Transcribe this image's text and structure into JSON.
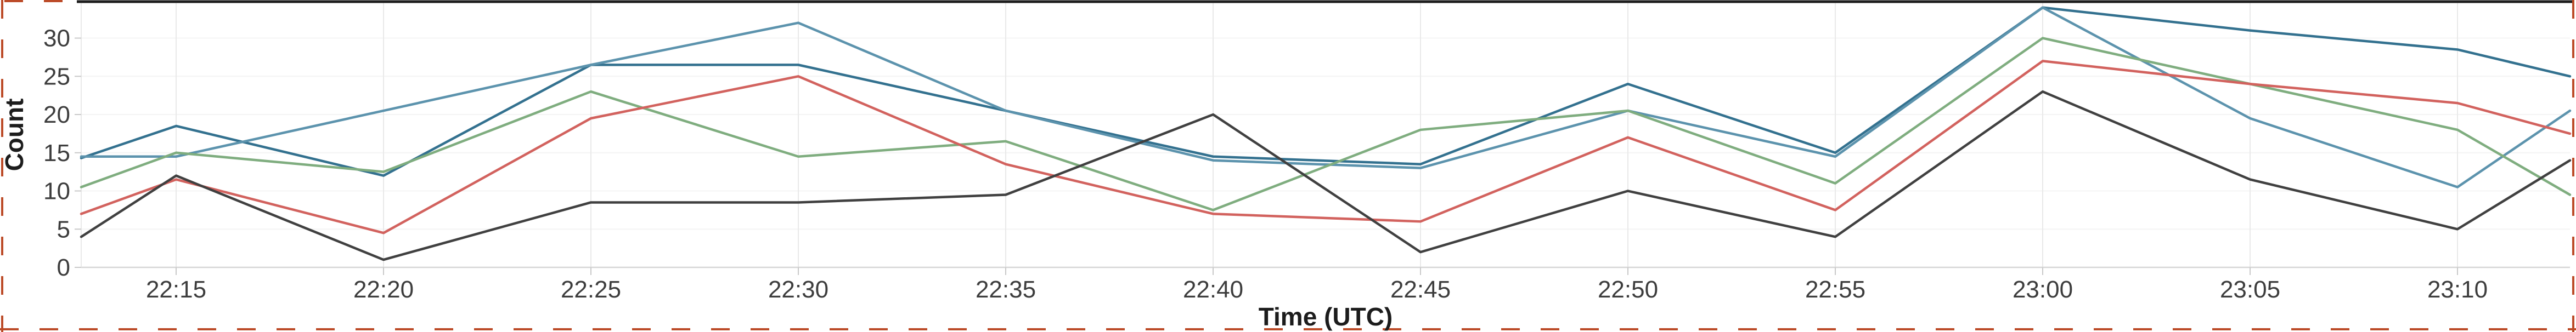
{
  "widget": {
    "description": "Line chart panel of counts over time (UTC), enclosed by an orange-red dashed selection border"
  },
  "axes": {
    "y_title": "Count",
    "x_title": "Time (UTC)"
  },
  "chart_data": {
    "type": "line",
    "title": "",
    "xlabel": "Time (UTC)",
    "ylabel": "Count",
    "x": [
      "22:15",
      "22:20",
      "22:25",
      "22:30",
      "22:35",
      "22:40",
      "22:45",
      "22:50",
      "22:55",
      "23:00",
      "23:05",
      "23:10"
    ],
    "y_ticks": [
      0,
      5,
      10,
      15,
      20,
      25,
      30
    ],
    "y_tick_labels": [
      "0",
      "5",
      "10",
      "15",
      "20",
      "25",
      "30"
    ],
    "ylim": [
      0,
      34.7
    ],
    "grid": "light vertical gridline at every 5-minute tick; very faint horizontal gridlines at each y tick",
    "legend_position": "none visible",
    "plot_note": "plot window extends about 2.5 minutes beyond the first and last labeled ticks; series lines are clipped at the plot edges (edge_start / edge_end are the clipped edge values)",
    "series": [
      {
        "name": "series-1-dark-steel-blue",
        "color": "#33718f",
        "edge_start": 14.3,
        "values": [
          18.5,
          12,
          26.5,
          26.5,
          20.5,
          14.5,
          13.5,
          24,
          15,
          34,
          31,
          28.5
        ],
        "edge_end": 25
      },
      {
        "name": "series-2-steel-blue",
        "color": "#5c93ad",
        "edge_start": 14.5,
        "values": [
          14.5,
          20.5,
          26.5,
          32,
          20.5,
          14,
          13,
          20.5,
          14.5,
          34,
          19.5,
          10.5
        ],
        "edge_end": 20.5
      },
      {
        "name": "series-3-green",
        "color": "#7fad7f",
        "edge_start": 10.5,
        "values": [
          15,
          12.5,
          23,
          14.5,
          16.5,
          7.5,
          18,
          20.5,
          11,
          30,
          24,
          18
        ],
        "edge_end": 9.5
      },
      {
        "name": "series-4-red",
        "color": "#d2625e",
        "edge_start": 7,
        "values": [
          11.5,
          4.5,
          19.5,
          25,
          13.5,
          7,
          6,
          17,
          7.5,
          27,
          24,
          21.5
        ],
        "edge_end": 17.5
      },
      {
        "name": "series-5-dark-gray",
        "color": "#404040",
        "edge_start": 4,
        "values": [
          12,
          1,
          8.5,
          8.5,
          9.5,
          20,
          2,
          10,
          4,
          23,
          11.5,
          5
        ],
        "edge_end": 14
      }
    ]
  },
  "frame": {
    "dashed_border_color": "#bc4b28",
    "top_bar_color": "#1e1e1e",
    "gridline_color": "#e9e9e9",
    "faint_hgrid_color": "#f4f4f4",
    "axis_line_color": "#d6d6d6",
    "tick_mark_color": "#c9c9c9",
    "tick_label_color": "#3d3d3d"
  }
}
